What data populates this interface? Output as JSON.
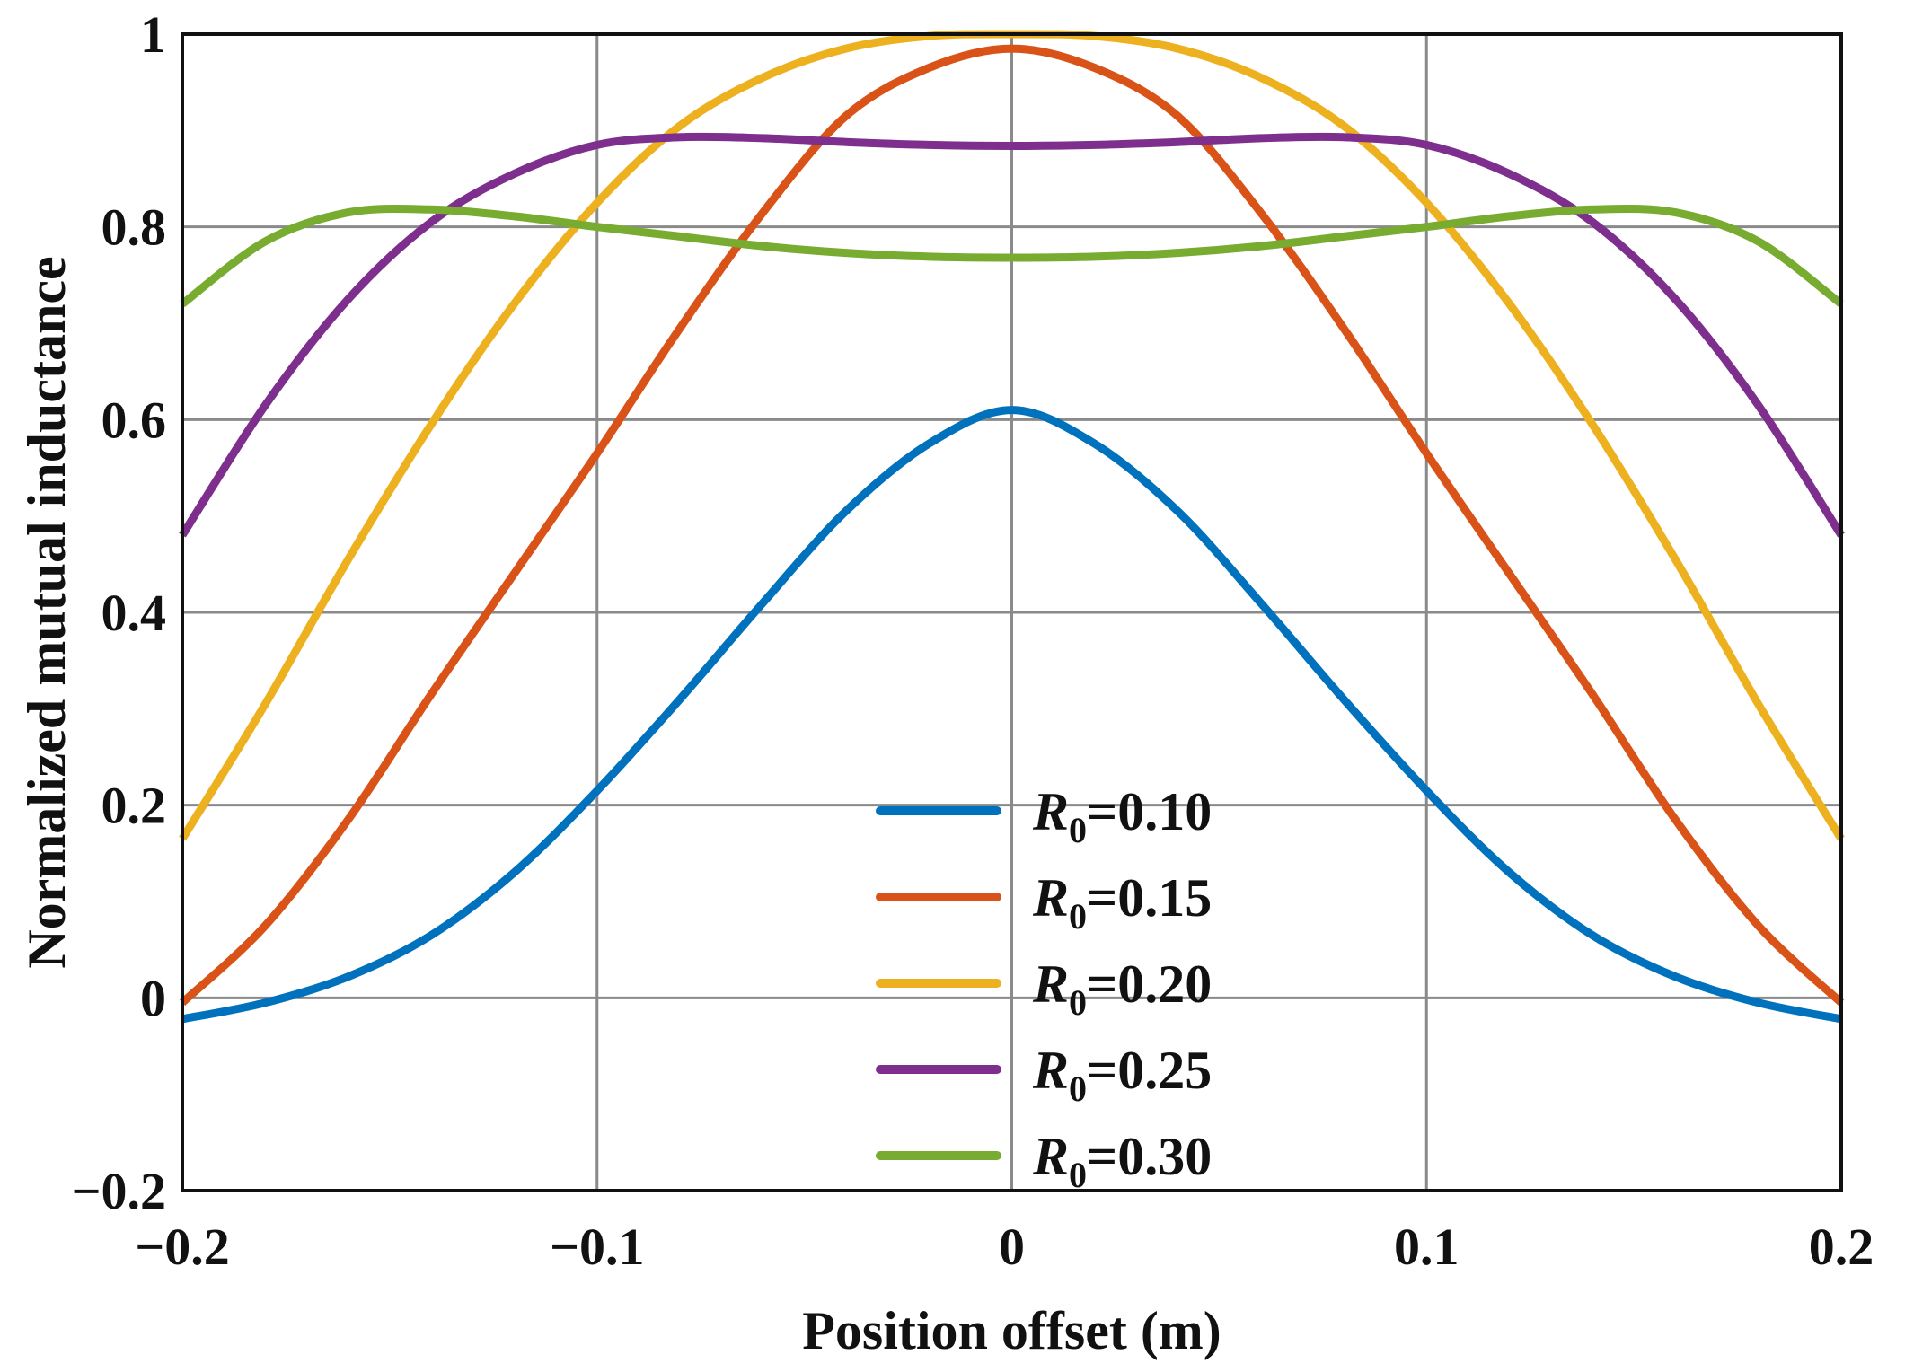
{
  "chart_data": {
    "type": "line",
    "title": "",
    "xlabel": "Position offset (m)",
    "ylabel": "Normalized mutual inductance",
    "xlim": [
      -0.2,
      0.2
    ],
    "ylim": [
      -0.2,
      1.0
    ],
    "xticks": [
      -0.2,
      -0.1,
      0,
      0.1,
      0.2
    ],
    "yticks": [
      -0.2,
      0,
      0.2,
      0.4,
      0.6,
      0.8,
      1.0
    ],
    "xtick_labels": [
      "−0.2",
      "−0.1",
      "0",
      "0.1",
      "0.2"
    ],
    "ytick_labels": [
      "−0.2",
      "0",
      "0.2",
      "0.4",
      "0.6",
      "0.8",
      "1"
    ],
    "grid": true,
    "legend_position": "bottom-center",
    "x": [
      -0.2,
      -0.18,
      -0.16,
      -0.14,
      -0.12,
      -0.1,
      -0.08,
      -0.06,
      -0.04,
      -0.02,
      0,
      0.02,
      0.04,
      0.06,
      0.08,
      0.1,
      0.12,
      0.14,
      0.16,
      0.18,
      0.2
    ],
    "series": [
      {
        "name": "R0=0.10",
        "legend_symbol": "R",
        "legend_subscript": "0",
        "legend_value": "=0.10",
        "color": "#0072BD",
        "values": [
          -0.022,
          -0.005,
          0.022,
          0.065,
          0.13,
          0.215,
          0.31,
          0.41,
          0.505,
          0.575,
          0.61,
          0.575,
          0.505,
          0.41,
          0.31,
          0.215,
          0.13,
          0.065,
          0.022,
          -0.005,
          -0.022
        ]
      },
      {
        "name": "R0=0.15",
        "legend_symbol": "R",
        "legend_subscript": "0",
        "legend_value": "=0.15",
        "color": "#D95319",
        "values": [
          -0.005,
          0.075,
          0.185,
          0.315,
          0.44,
          0.565,
          0.695,
          0.815,
          0.915,
          0.965,
          0.985,
          0.965,
          0.915,
          0.815,
          0.695,
          0.565,
          0.44,
          0.315,
          0.185,
          0.075,
          -0.005
        ]
      },
      {
        "name": "R0=0.20",
        "legend_symbol": "R",
        "legend_subscript": "0",
        "legend_value": "=0.20",
        "color": "#EDB120",
        "values": [
          0.165,
          0.305,
          0.455,
          0.595,
          0.72,
          0.825,
          0.905,
          0.955,
          0.985,
          0.998,
          1.0,
          0.998,
          0.985,
          0.955,
          0.905,
          0.825,
          0.72,
          0.595,
          0.455,
          0.305,
          0.165
        ]
      },
      {
        "name": "R0=0.25",
        "legend_symbol": "R",
        "legend_subscript": "0",
        "legend_value": "=0.25",
        "color": "#7E2F8E",
        "values": [
          0.48,
          0.615,
          0.725,
          0.805,
          0.855,
          0.885,
          0.893,
          0.892,
          0.888,
          0.885,
          0.884,
          0.885,
          0.888,
          0.892,
          0.893,
          0.885,
          0.855,
          0.805,
          0.725,
          0.615,
          0.48
        ]
      },
      {
        "name": "R0=0.30",
        "legend_symbol": "R",
        "legend_subscript": "0",
        "legend_value": "=0.30",
        "color": "#77AC30",
        "values": [
          0.72,
          0.785,
          0.815,
          0.818,
          0.811,
          0.8,
          0.79,
          0.78,
          0.773,
          0.769,
          0.768,
          0.769,
          0.773,
          0.78,
          0.79,
          0.8,
          0.811,
          0.818,
          0.815,
          0.785,
          0.72
        ]
      }
    ]
  }
}
